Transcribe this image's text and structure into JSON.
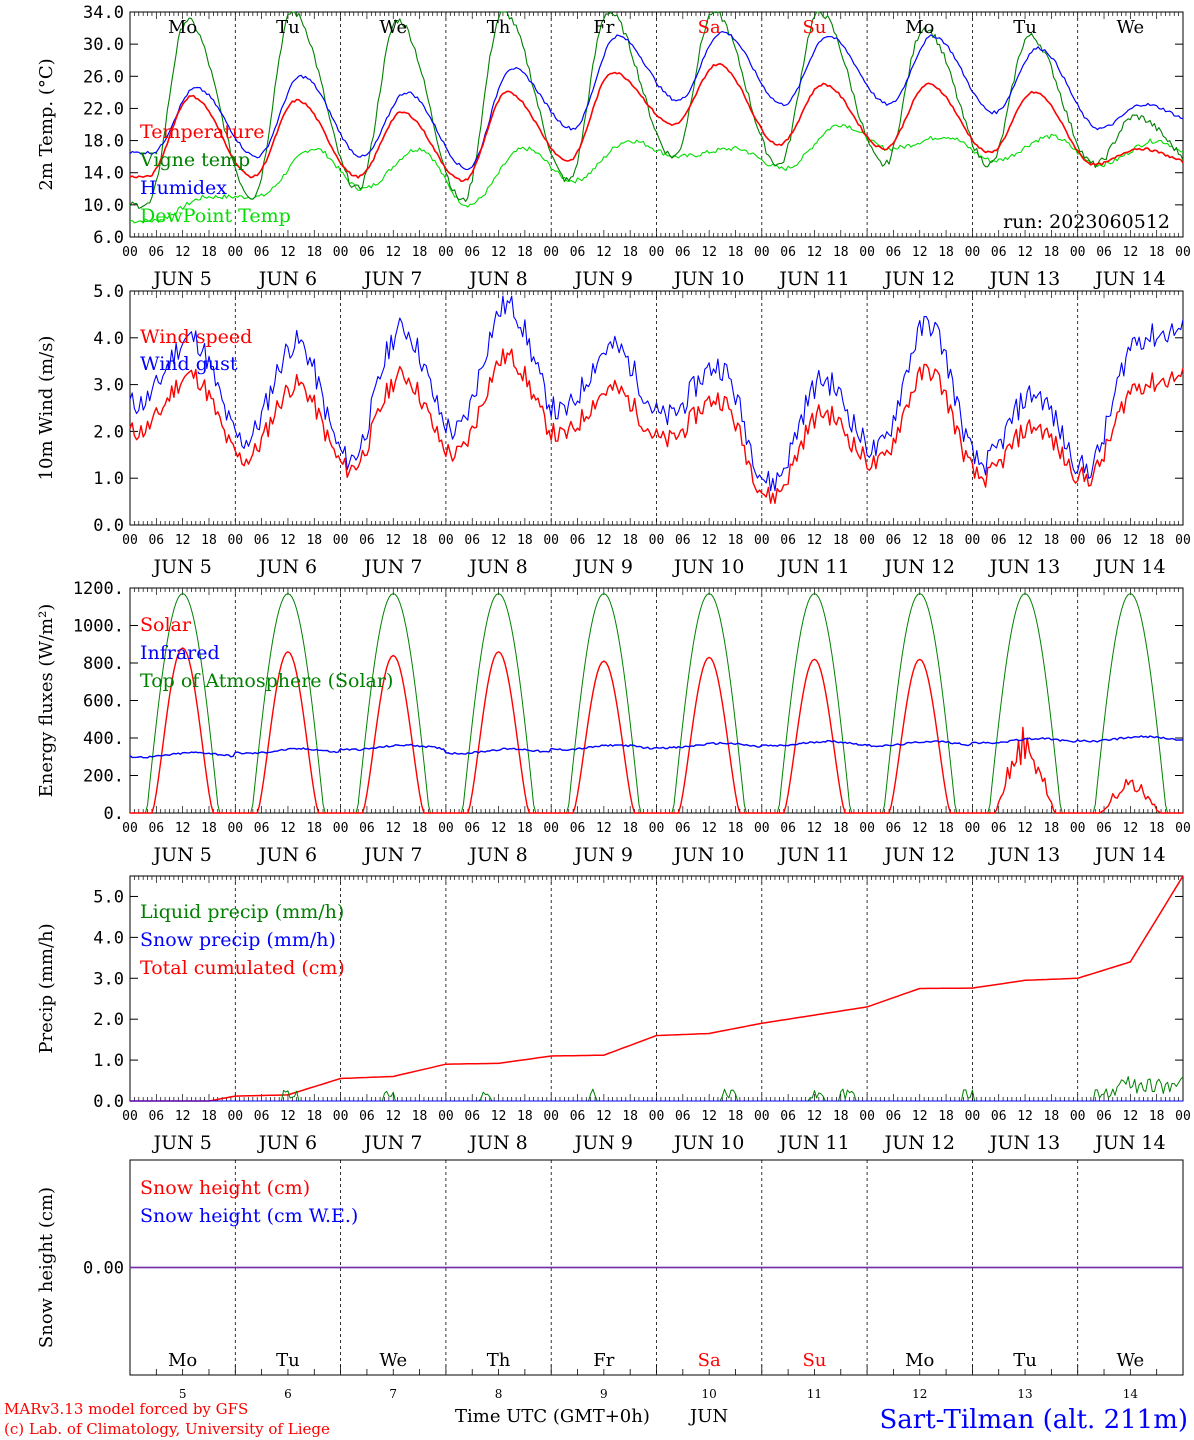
{
  "footer": {
    "credit_line1": "MARv3.13 model forced by GFS",
    "credit_line2": "(c) Lab. of Climatology, University of Liege",
    "xlabel": "Time UTC (GMT+0h)",
    "month": "JUN",
    "station": "Sart-Tilman (alt. 211m)"
  },
  "colors": {
    "red": "#ff0000",
    "blue": "#0000ff",
    "green": "#008000",
    "lime": "#00dd00",
    "purple": "#7a2ea0"
  },
  "days": {
    "names": [
      "Mo",
      "Tu",
      "We",
      "Th",
      "Fr",
      "Sa",
      "Su",
      "Mo",
      "Tu",
      "We"
    ],
    "weekend": [
      false,
      false,
      false,
      false,
      false,
      true,
      true,
      false,
      false,
      false
    ],
    "dates": [
      "JUN  5",
      "JUN  6",
      "JUN  7",
      "JUN  8",
      "JUN  9",
      "JUN 10",
      "JUN 11",
      "JUN 12",
      "JUN 13",
      "JUN 14"
    ],
    "numbers": [
      "5",
      "6",
      "7",
      "8",
      "9",
      "10",
      "11",
      "12",
      "13",
      "14"
    ],
    "hour_labels": [
      "00",
      "06",
      "12",
      "18"
    ],
    "final_hour": "00"
  },
  "chart_data": [
    {
      "type": "line",
      "ylabel": "2m Temp. (°C)",
      "ylim": [
        6,
        34
      ],
      "yticks": [
        "6.0",
        "10.0",
        "14.0",
        "18.0",
        "22.0",
        "26.0",
        "30.0",
        "34.0"
      ],
      "annotation": "run: 2023060512",
      "x_unit": "hours from 2023-06-05 00 UTC",
      "series": [
        {
          "name": "Temperature",
          "color": "#ff0000",
          "peaks": [
            23.5,
            23,
            21.5,
            24,
            26.5,
            27.5,
            25,
            25,
            24,
            17
          ],
          "troughs": [
            13.5,
            13.5,
            13.5,
            13,
            15.5,
            20,
            17.5,
            17,
            16.5,
            15,
            15
          ]
        },
        {
          "name": "Vigne temp",
          "color": "#008000",
          "peaks": [
            33,
            34,
            33,
            34,
            34,
            34,
            34,
            32,
            31,
            21
          ],
          "troughs": [
            10,
            11,
            12,
            10.5,
            13,
            16,
            15,
            15,
            15,
            15,
            15
          ]
        },
        {
          "name": "Humidex",
          "color": "#0000ff",
          "peaks": [
            24.5,
            26,
            24,
            27,
            31,
            31.5,
            31,
            31,
            29.5,
            22.5
          ],
          "troughs": [
            16.5,
            16,
            16,
            14.5,
            19.5,
            23,
            22.5,
            22.5,
            21.5,
            19.5,
            20
          ]
        },
        {
          "name": "DewPoint Temp",
          "color": "#00dd00",
          "peaks": [
            11,
            17,
            17,
            17,
            18,
            17,
            20,
            18.5,
            18.5,
            18
          ],
          "troughs": [
            8,
            11,
            12,
            10,
            13,
            16,
            14.5,
            17,
            15.5,
            15,
            15
          ]
        }
      ]
    },
    {
      "type": "line",
      "ylabel": "10m Wind (m/s)",
      "ylim": [
        0,
        5
      ],
      "yticks": [
        "0.0",
        "1.0",
        "2.0",
        "3.0",
        "4.0",
        "5.0"
      ],
      "series": [
        {
          "name": "Wind speed",
          "color": "#ff0000",
          "peaks": [
            3.2,
            3.0,
            3.2,
            3.6,
            2.9,
            2.7,
            2.4,
            3.3,
            2.1,
            3.0
          ],
          "troughs": [
            2.0,
            1.4,
            1.2,
            1.5,
            1.9,
            1.8,
            0.6,
            1.3,
            1.0,
            1.0,
            3.2
          ]
        },
        {
          "name": "Wind gust",
          "color": "#0000ff",
          "peaks": [
            4.0,
            3.9,
            4.2,
            4.7,
            3.8,
            3.4,
            3.1,
            4.3,
            2.8,
            4.0
          ],
          "troughs": [
            2.6,
            1.8,
            1.4,
            2.0,
            2.4,
            2.3,
            0.9,
            1.6,
            1.3,
            1.2,
            4.2
          ]
        }
      ]
    },
    {
      "type": "line",
      "ylabel": "Energy fluxes (W/m²)",
      "ylim": [
        0,
        1200
      ],
      "yticks": [
        "0.",
        "200.",
        "400.",
        "600.",
        "800.",
        "1000.",
        "1200."
      ],
      "series": [
        {
          "name": "Solar",
          "color": "#ff0000",
          "daily_peaks": [
            880,
            860,
            840,
            860,
            810,
            830,
            820,
            820,
            480,
            220
          ]
        },
        {
          "name": "Infrared",
          "color": "#0000ff",
          "daily_mean": [
            310,
            330,
            350,
            330,
            350,
            360,
            370,
            370,
            385,
            395
          ]
        },
        {
          "name": "Top of Atmosphere (Solar)",
          "color": "#008000",
          "daily_peaks": [
            1170,
            1170,
            1170,
            1170,
            1170,
            1170,
            1170,
            1170,
            1170,
            1170
          ]
        }
      ]
    },
    {
      "type": "line",
      "ylabel": "Precip (mm/h)",
      "ylim": [
        0,
        5.5
      ],
      "yticks": [
        "0.0",
        "1.0",
        "2.0",
        "3.0",
        "4.0",
        "5.0"
      ],
      "series": [
        {
          "name": "Liquid precip (mm/h)",
          "color": "#008000"
        },
        {
          "name": "Snow precip (mm/h)",
          "color": "#0000ff"
        },
        {
          "name": "Total cumulated (cm)",
          "color": "#ff0000",
          "x": [
            0,
            18,
            24,
            36,
            48,
            60,
            72,
            84,
            96,
            108,
            120,
            132,
            144,
            156,
            168,
            180,
            192,
            204,
            216,
            228,
            240
          ],
          "y": [
            0,
            0,
            0.12,
            0.15,
            0.55,
            0.6,
            0.9,
            0.92,
            1.1,
            1.12,
            1.6,
            1.65,
            1.9,
            2.1,
            2.3,
            2.75,
            2.76,
            2.95,
            3.0,
            3.4,
            5.5
          ]
        }
      ]
    },
    {
      "type": "line",
      "ylabel": "Snow height (cm)",
      "yticks": [
        "0.00"
      ],
      "series": [
        {
          "name": "Snow height (cm)",
          "color": "#ff0000",
          "value": 0
        },
        {
          "name": "Snow height (cm W.E.)",
          "color": "#0000ff",
          "value": 0
        }
      ]
    }
  ]
}
